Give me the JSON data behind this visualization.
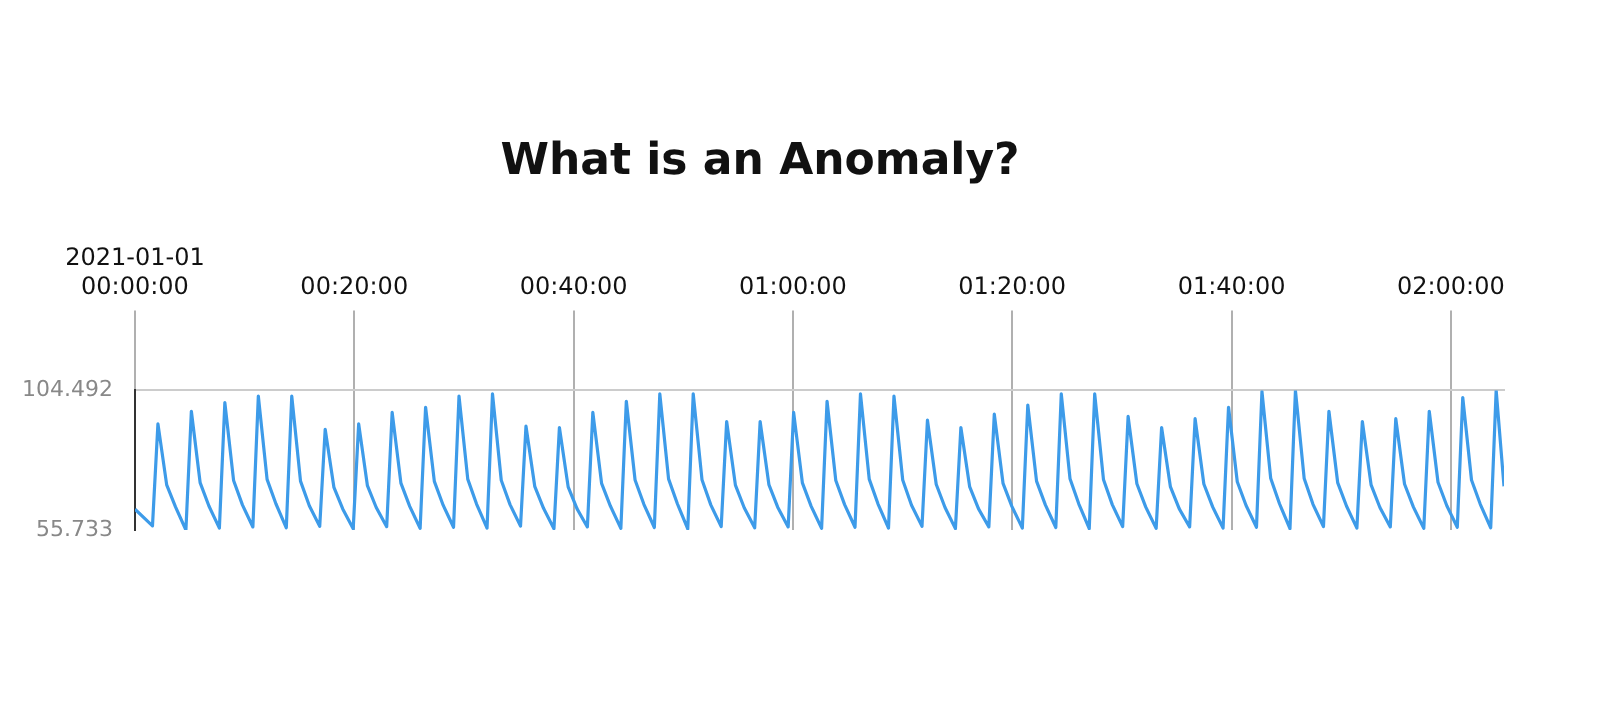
{
  "chart_data": {
    "type": "line",
    "title": "What is an Anomaly?",
    "x": [
      0,
      0.0266,
      0.0349,
      0.0482,
      0.0616,
      0.0774,
      0.0857,
      0.099,
      0.1124,
      0.1283,
      0.1366,
      0.1499,
      0.1633,
      0.1792,
      0.1875,
      0.2008,
      0.2142,
      0.23,
      0.2383,
      0.2516,
      0.265,
      0.2808,
      0.2891,
      0.3024,
      0.3158,
      0.3317,
      0.34,
      0.3533,
      0.3667,
      0.3826,
      0.3909,
      0.4042,
      0.4176,
      0.4334,
      0.4417,
      0.455,
      0.4684,
      0.4842,
      0.4925,
      0.5058,
      0.5192,
      0.5351,
      0.5434,
      0.5567,
      0.5701,
      0.586,
      0.5943,
      0.6076,
      0.621,
      0.6368,
      0.6451,
      0.6584,
      0.6718,
      0.6876,
      0.6959,
      0.7092,
      0.7226,
      0.7385,
      0.7468,
      0.7601,
      0.7735,
      0.7894,
      0.7977,
      0.811,
      0.8244,
      0.8402,
      0.8485,
      0.8618,
      0.8752,
      0.891,
      0.8993,
      0.9126,
      0.926,
      0.9419,
      0.9502,
      0.9635,
      0.9769,
      0.9928,
      1.0011,
      1.0144,
      1.0278,
      1.0436,
      1.0519,
      1.0652,
      1.0786,
      1.0944,
      1.1027,
      1.116,
      1.1294,
      1.1453,
      1.1536,
      1.1669,
      1.1803,
      1.1962,
      1.2045,
      1.2178,
      1.2312,
      1.247,
      1.2553,
      1.2686,
      1.282,
      1.2978,
      1.3061,
      1.3194,
      1.3328,
      1.3487,
      1.357,
      1.3703,
      1.3837,
      1.3996,
      1.4079,
      1.4212,
      1.4346,
      1.4504,
      1.4587,
      1.472,
      1.4854,
      1.5012,
      1.5095,
      1.5228,
      1.5362,
      1.5521,
      1.5604,
      1.5737,
      1.5871,
      1.603,
      1.6113,
      1.6246,
      1.638,
      1.6538,
      1.6621,
      1.6754,
      1.6888,
      1.7046,
      1.7129,
      1.7262,
      1.7396,
      1.7555,
      1.7638,
      1.7771,
      1.7905,
      1.8064,
      1.8147,
      1.828,
      1.8414,
      1.8572,
      1.8655,
      1.8788,
      1.8922,
      1.908,
      1.9163,
      1.9296,
      1.943,
      1.9589,
      1.9672,
      1.9805,
      1.9939,
      2.0098,
      2.0181,
      2.0314,
      2.0448,
      2.0606,
      2.0689,
      2.0808
    ],
    "series": [
      {
        "color": "#3d9be9",
        "values": [
          63.0,
          57.2,
          92.8,
          71.5,
          63.8,
          55.733,
          97.2,
          72.3,
          64.1,
          56.4,
          100.2,
          73.0,
          64.5,
          56.8,
          102.5,
          73.4,
          64.9,
          56.5,
          102.5,
          72.8,
          64.2,
          57.0,
          90.9,
          70.6,
          63.1,
          56.2,
          92.8,
          71.2,
          63.6,
          56.9,
          96.8,
          72.1,
          64.0,
          56.3,
          98.6,
          72.7,
          64.4,
          56.7,
          102.5,
          73.5,
          64.8,
          56.4,
          103.3,
          73.1,
          64.6,
          57.1,
          92.0,
          71.0,
          63.3,
          56.2,
          91.5,
          70.8,
          63.2,
          56.8,
          96.8,
          72.0,
          64.1,
          56.3,
          100.7,
          73.2,
          64.7,
          56.6,
          103.3,
          73.6,
          64.9,
          56.1,
          103.3,
          73.3,
          64.5,
          56.9,
          93.6,
          71.4,
          63.5,
          56.5,
          93.6,
          71.6,
          63.7,
          56.8,
          96.8,
          72.2,
          64.0,
          56.3,
          100.7,
          73.0,
          64.6,
          56.7,
          103.3,
          73.5,
          64.8,
          56.4,
          102.5,
          73.2,
          64.4,
          57.0,
          94.1,
          71.7,
          63.6,
          56.2,
          91.5,
          70.9,
          63.2,
          56.8,
          96.2,
          72.0,
          64.0,
          56.4,
          99.4,
          72.8,
          64.5,
          56.6,
          103.3,
          73.6,
          64.8,
          56.2,
          103.3,
          73.4,
          64.6,
          56.9,
          95.4,
          71.9,
          63.8,
          56.3,
          91.5,
          70.9,
          63.2,
          56.8,
          94.6,
          71.8,
          63.8,
          56.4,
          98.6,
          72.6,
          64.3,
          56.7,
          104.1,
          73.8,
          64.9,
          56.2,
          104.4,
          73.7,
          64.7,
          56.9,
          97.2,
          72.3,
          64.1,
          56.4,
          93.6,
          71.5,
          63.6,
          56.8,
          94.6,
          71.8,
          63.8,
          56.3,
          97.2,
          72.4,
          64.2,
          56.7,
          102.0,
          73.2,
          64.7,
          56.5,
          104.492,
          71.0
        ]
      }
    ],
    "xlim": [
      0,
      2.0808
    ],
    "xticks": [
      {
        "value": 0,
        "label": "2021-01-01\n00:00:00"
      },
      {
        "value": 0.3333,
        "label": "00:20:00"
      },
      {
        "value": 0.6667,
        "label": "00:40:00"
      },
      {
        "value": 1,
        "label": "01:00:00"
      },
      {
        "value": 1.3333,
        "label": "01:20:00"
      },
      {
        "value": 1.6667,
        "label": "01:40:00"
      },
      {
        "value": 2,
        "label": "02:00:00"
      }
    ],
    "ylim": [
      55.733,
      104.492
    ],
    "yticks": [
      55.733,
      104.492
    ],
    "grid": "x",
    "legend": false,
    "marker": "none",
    "line_style": "solid"
  }
}
